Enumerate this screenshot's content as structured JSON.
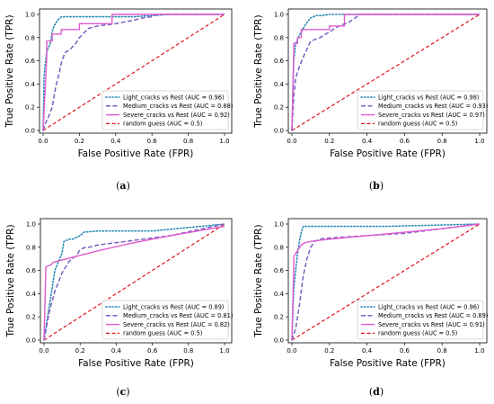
{
  "figure": {
    "xlabel": "False Positive Rate (FPR)",
    "ylabel": "True Positive Rate (TPR)",
    "xticks": [
      "0.0",
      "0.2",
      "0.4",
      "0.6",
      "0.8",
      "1.0"
    ],
    "yticks": [
      "0.0",
      "0.2",
      "0.4",
      "0.6",
      "0.8",
      "1.0"
    ]
  },
  "colors": {
    "light": "#2a8bb5",
    "medium": "#7b5fc2",
    "severe": "#e05ad0",
    "random": "#e0151b"
  },
  "chart_data": [
    {
      "type": "line",
      "panel_label": "(a)",
      "xlabel": "False Positive Rate (FPR)",
      "ylabel": "True Positive Rate (TPR)",
      "xlim": [
        0,
        1
      ],
      "ylim": [
        0,
        1
      ],
      "legend_position": "lower-right",
      "series": [
        {
          "name": "Light_cracks vs Rest (AUC = 0.96)",
          "key": "light",
          "style": "dotted",
          "x": [
            0,
            0.005,
            0.01,
            0.02,
            0.04,
            0.05,
            0.06,
            0.08,
            0.1,
            0.3,
            0.5,
            0.6,
            0.7,
            1.0
          ],
          "y": [
            0,
            0.45,
            0.55,
            0.68,
            0.75,
            0.85,
            0.9,
            0.95,
            0.98,
            0.98,
            0.98,
            0.99,
            1.0,
            1.0
          ]
        },
        {
          "name": "Medium_cracks vs Rest (AUC = 0.88)",
          "key": "medium",
          "style": "dashed",
          "x": [
            0,
            0.01,
            0.03,
            0.05,
            0.07,
            0.09,
            0.1,
            0.12,
            0.15,
            0.18,
            0.2,
            0.25,
            0.3,
            0.4,
            0.5,
            0.55,
            0.6,
            0.63,
            1.0
          ],
          "y": [
            0,
            0.05,
            0.12,
            0.2,
            0.38,
            0.5,
            0.58,
            0.67,
            0.7,
            0.75,
            0.8,
            0.88,
            0.9,
            0.92,
            0.95,
            0.97,
            0.98,
            1.0,
            1.0
          ]
        },
        {
          "name": "Severe_cracks vs Rest (AUC = 0.92)",
          "key": "severe",
          "style": "solid",
          "x": [
            0,
            0.02,
            0.02,
            0.05,
            0.05,
            0.1,
            0.1,
            0.2,
            0.2,
            0.38,
            0.38,
            1.0
          ],
          "y": [
            0,
            0.62,
            0.77,
            0.77,
            0.83,
            0.83,
            0.87,
            0.87,
            0.92,
            0.92,
            1.0,
            1.0
          ]
        },
        {
          "name": "random guess (AUC = 0.5)",
          "key": "random",
          "style": "dashed-red",
          "x": [
            0,
            1
          ],
          "y": [
            0,
            1
          ]
        }
      ]
    },
    {
      "type": "line",
      "panel_label": "(b)",
      "xlabel": "False Positive Rate (FPR)",
      "ylabel": "True Positive Rate (TPR)",
      "xlim": [
        0,
        1
      ],
      "ylim": [
        0,
        1
      ],
      "legend_position": "lower-right",
      "series": [
        {
          "name": "Light_cracks vs Rest (AUC = 0.98)",
          "key": "light",
          "style": "dotted",
          "x": [
            0,
            0.01,
            0.02,
            0.04,
            0.06,
            0.08,
            0.1,
            0.13,
            0.16,
            0.2,
            1.0
          ],
          "y": [
            0,
            0.6,
            0.75,
            0.82,
            0.88,
            0.93,
            0.97,
            0.99,
            0.99,
            1.0,
            1.0
          ]
        },
        {
          "name": "Medium_cracks vs Rest (AUC = 0.93)",
          "key": "medium",
          "style": "dashed",
          "x": [
            0,
            0.01,
            0.02,
            0.04,
            0.06,
            0.08,
            0.1,
            0.15,
            0.2,
            0.25,
            0.3,
            0.33,
            0.36,
            1.0
          ],
          "y": [
            0,
            0.3,
            0.45,
            0.55,
            0.63,
            0.7,
            0.77,
            0.8,
            0.85,
            0.9,
            0.93,
            0.96,
            1.0,
            1.0
          ]
        },
        {
          "name": "Severe_cracks vs Rest (AUC = 0.97)",
          "key": "severe",
          "style": "solid",
          "x": [
            0,
            0.01,
            0.01,
            0.03,
            0.03,
            0.05,
            0.05,
            0.2,
            0.2,
            0.28,
            0.28,
            1.0
          ],
          "y": [
            0,
            0.7,
            0.75,
            0.75,
            0.8,
            0.8,
            0.87,
            0.87,
            0.9,
            0.9,
            1.0,
            1.0
          ]
        },
        {
          "name": "random guess (AUC = 0.5)",
          "key": "random",
          "style": "dashed-red",
          "x": [
            0,
            1
          ],
          "y": [
            0,
            1
          ]
        }
      ]
    },
    {
      "type": "line",
      "panel_label": "(c)",
      "xlabel": "False Positive Rate (FPR)",
      "ylabel": "True Positive Rate (TPR)",
      "xlim": [
        0,
        1
      ],
      "ylim": [
        0,
        1
      ],
      "legend_position": "lower-right",
      "series": [
        {
          "name": "Light_cracks vs Rest (AUC = 0.89)",
          "key": "light",
          "style": "dotted",
          "x": [
            0,
            0.03,
            0.06,
            0.1,
            0.11,
            0.14,
            0.16,
            0.2,
            0.22,
            0.3,
            0.6,
            1.0
          ],
          "y": [
            0,
            0.3,
            0.6,
            0.75,
            0.85,
            0.87,
            0.87,
            0.9,
            0.93,
            0.94,
            0.94,
            1.0
          ]
        },
        {
          "name": "Medium_cracks vs Rest (AUC = 0.81)",
          "key": "medium",
          "style": "dashed",
          "x": [
            0,
            0.03,
            0.06,
            0.1,
            0.14,
            0.18,
            0.2,
            0.23,
            0.25,
            0.3,
            0.5,
            0.7,
            1.0
          ],
          "y": [
            0,
            0.25,
            0.42,
            0.58,
            0.68,
            0.73,
            0.78,
            0.8,
            0.8,
            0.82,
            0.86,
            0.9,
            1.0
          ]
        },
        {
          "name": "Severe_cracks vs Rest (AUC = 0.82)",
          "key": "severe",
          "style": "solid",
          "x": [
            0,
            0.01,
            0.01,
            0.04,
            0.05,
            0.1,
            0.15,
            0.2,
            0.3,
            0.5,
            0.7,
            1.0
          ],
          "y": [
            0,
            0.62,
            0.63,
            0.65,
            0.67,
            0.69,
            0.71,
            0.73,
            0.77,
            0.84,
            0.9,
            0.98
          ]
        },
        {
          "name": "random guess (AUC = 0.5)",
          "key": "random",
          "style": "dashed-red",
          "x": [
            0,
            1
          ],
          "y": [
            0,
            1
          ]
        }
      ]
    },
    {
      "type": "line",
      "panel_label": "(d)",
      "xlabel": "False Positive Rate (FPR)",
      "ylabel": "True Positive Rate (TPR)",
      "xlim": [
        0,
        1
      ],
      "ylim": [
        0,
        1
      ],
      "legend_position": "lower-right",
      "series": [
        {
          "name": "Light_cracks vs Rest (AUC = 0.96)",
          "key": "light",
          "style": "dotted",
          "x": [
            0,
            0.01,
            0.02,
            0.03,
            0.04,
            0.05,
            0.06,
            0.08,
            0.2,
            0.5,
            1.0
          ],
          "y": [
            0,
            0.45,
            0.6,
            0.75,
            0.85,
            0.93,
            0.98,
            0.98,
            0.98,
            0.98,
            1.0
          ]
        },
        {
          "name": "Medium_cracks vs Rest (AUC = 0.89)",
          "key": "medium",
          "style": "dashed",
          "x": [
            0,
            0.02,
            0.04,
            0.06,
            0.08,
            0.1,
            0.12,
            0.15,
            0.2,
            0.4,
            0.6,
            1.0
          ],
          "y": [
            0,
            0.1,
            0.3,
            0.55,
            0.7,
            0.8,
            0.85,
            0.87,
            0.88,
            0.9,
            0.92,
            1.0
          ]
        },
        {
          "name": "Severe_cracks vs Rest (AUC = 0.91)",
          "key": "severe",
          "style": "solid",
          "x": [
            0,
            0.01,
            0.01,
            0.03,
            0.05,
            0.07,
            0.1,
            0.2,
            0.4,
            0.6,
            0.8,
            1.0
          ],
          "y": [
            0,
            0.65,
            0.72,
            0.77,
            0.82,
            0.84,
            0.85,
            0.87,
            0.9,
            0.93,
            0.96,
            1.0
          ]
        },
        {
          "name": "random guess (AUC = 0.5)",
          "key": "random",
          "style": "dashed-red",
          "x": [
            0,
            1
          ],
          "y": [
            0,
            1
          ]
        }
      ]
    }
  ]
}
